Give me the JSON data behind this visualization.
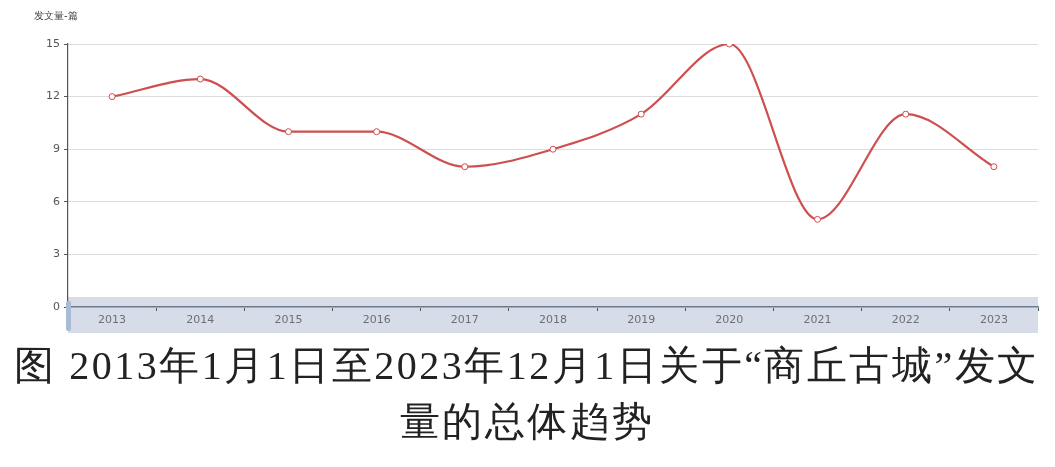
{
  "chart_data": {
    "type": "line",
    "ylabel": "发文量-篇",
    "categories": [
      "2013",
      "2014",
      "2015",
      "2016",
      "2017",
      "2018",
      "2019",
      "2020",
      "2021",
      "2022",
      "2023"
    ],
    "series": [
      {
        "color": "#cd4f4f",
        "values": [
          12,
          13,
          10,
          10,
          8,
          9,
          11,
          15,
          5,
          11,
          8
        ]
      }
    ],
    "ylim": [
      0,
      15
    ],
    "yticks": [
      0,
      3,
      6,
      9,
      12,
      15
    ],
    "grid": "y",
    "marker": "circle",
    "line_style": "solid",
    "annotations": [
      "图 2013年1月1日至2023年12月1日关于“商丘古城”发文量的总体趋势"
    ]
  }
}
